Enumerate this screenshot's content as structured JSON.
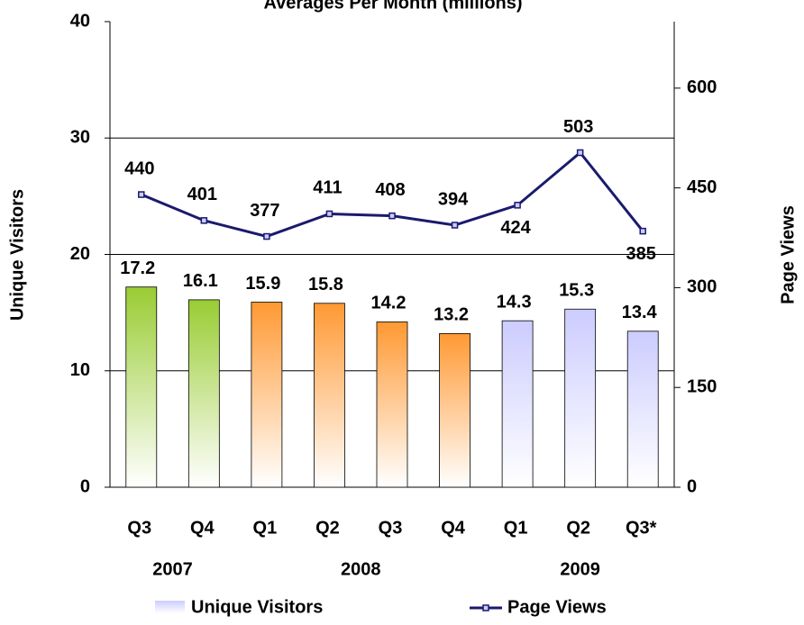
{
  "chart_data": {
    "type": "bar_line",
    "title": "Averages Per Month (millions)",
    "categories": [
      "Q3",
      "Q4",
      "Q1",
      "Q2",
      "Q3",
      "Q4",
      "Q1",
      "Q2",
      "Q3*"
    ],
    "category_groups": [
      {
        "label": "2007",
        "size": 2
      },
      {
        "label": "2008",
        "size": 4
      },
      {
        "label": "2009",
        "size": 3
      }
    ],
    "y_label": "Unique Visitors",
    "y2_label": "Page Views",
    "ylim": [
      0,
      40
    ],
    "yticks": [
      0,
      10,
      20,
      30,
      40
    ],
    "y2lim": [
      0,
      700
    ],
    "y2ticks": [
      0,
      150,
      300,
      450,
      600
    ],
    "grid": true,
    "legend": "bottom",
    "series": [
      {
        "name": "Unique Visitors",
        "type": "bar",
        "color": "#ccccff",
        "bar_colors": [
          "#99cc33",
          "#99cc33",
          "#ff9933",
          "#ff9933",
          "#ff9933",
          "#ff9933",
          "#ccccff",
          "#ccccff",
          "#ccccff"
        ],
        "values": [
          17.2,
          16.1,
          15.9,
          15.8,
          14.2,
          13.2,
          14.3,
          15.3,
          13.4
        ]
      },
      {
        "name": "Page Views",
        "type": "line",
        "axis": "y2",
        "color": "#1a1a6e",
        "label_positions": [
          "above",
          "above",
          "above",
          "above",
          "above",
          "above",
          "below",
          "above",
          "below"
        ],
        "values": [
          440,
          401,
          377,
          411,
          408,
          394,
          424,
          503,
          385
        ]
      }
    ]
  }
}
